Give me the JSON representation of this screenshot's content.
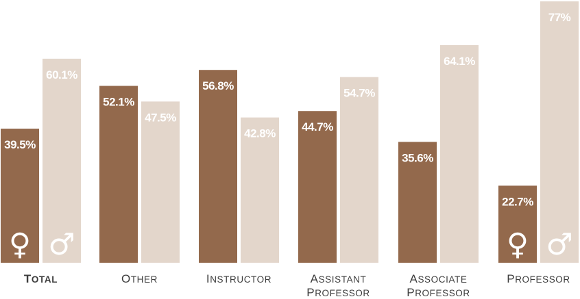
{
  "chart_data": {
    "type": "bar",
    "categories": [
      {
        "first": "T",
        "rest": "OTAL",
        "line2_first": "",
        "line2_rest": "",
        "emphasis": true
      },
      {
        "first": "O",
        "rest": "THER",
        "line2_first": "",
        "line2_rest": "",
        "emphasis": false
      },
      {
        "first": "I",
        "rest": "NSTRUCTOR",
        "line2_first": "",
        "line2_rest": "",
        "emphasis": false
      },
      {
        "first": "A",
        "rest": "SSISTANT",
        "line2_first": "P",
        "line2_rest": "ROFESSOR",
        "emphasis": false
      },
      {
        "first": "A",
        "rest": "SSOCIATE",
        "line2_first": "P",
        "line2_rest": "ROFESSOR",
        "emphasis": false
      },
      {
        "first": "P",
        "rest": "ROFESSOR",
        "line2_first": "",
        "line2_rest": "",
        "emphasis": false
      }
    ],
    "series": [
      {
        "symbol": "♀",
        "icon": "female-symbol-icon",
        "color": "#93694c",
        "label_color": "#ffffff",
        "values": [
          39.5,
          52.1,
          56.8,
          44.7,
          35.6,
          22.7
        ],
        "value_labels": [
          "39.5%",
          "52.1%",
          "56.8%",
          "44.7%",
          "35.6%",
          "22.7%"
        ]
      },
      {
        "symbol": "♂",
        "icon": "male-symbol-icon",
        "color": "#e3d6cb",
        "label_color": "#ffffff",
        "values": [
          60.1,
          47.5,
          42.8,
          54.7,
          64.1,
          77.0
        ],
        "value_labels": [
          "60.1%",
          "47.5%",
          "42.8%",
          "54.7%",
          "64.1%",
          "77%"
        ]
      }
    ],
    "symbol_shown_in_categories": [
      0,
      5
    ],
    "ylim": [
      0,
      77
    ],
    "grid": false,
    "legend": "none",
    "label_color": "#3c3c3c"
  }
}
